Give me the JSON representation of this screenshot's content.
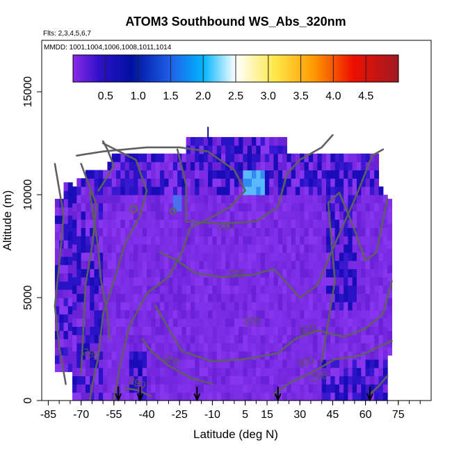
{
  "chart_data": {
    "type": "heatmap",
    "title": "ATOM3 Southbound WS_Abs_320nm",
    "flights_note": "Flts: 2,3,4,5,6,7",
    "dates_note": "MMDD: 1001,1004,1006,1008,1011,1014",
    "xlabel": "Latitude (deg N)",
    "ylabel": "Altitude (m)",
    "xlim": [
      -88,
      90
    ],
    "ylim": [
      0,
      17500
    ],
    "x_ticks": [
      -85,
      -70,
      -55,
      -40,
      -25,
      -10,
      5,
      15,
      30,
      45,
      60,
      75
    ],
    "y_ticks": [
      0,
      5000,
      10000,
      15000
    ],
    "colorbar": {
      "ticks": [
        0.5,
        1.0,
        1.5,
        2.0,
        2.5,
        3.0,
        3.5,
        4.0,
        4.5
      ],
      "tick_labels": [
        "0.5",
        "1.0",
        "1.5",
        "2.0",
        "2.5",
        "3.0",
        "3.5",
        "4.0",
        "4.5"
      ],
      "range": [
        0,
        5
      ],
      "colors": [
        "#7a2be0",
        "#2a10c8",
        "#0014a8",
        "#1e5ae6",
        "#00b4ff",
        "#ffffff",
        "#ffee60",
        "#ff9a00",
        "#ee1000",
        "#a01020"
      ]
    },
    "contour_labels": [
      {
        "label": "340",
        "lat": -4,
        "alt": 8300
      },
      {
        "label": "330",
        "lat": 1,
        "alt": 6000
      },
      {
        "label": "320",
        "lat": 8,
        "alt": 3700
      },
      {
        "label": "310",
        "lat": 34,
        "alt": 3300
      },
      {
        "label": "300",
        "lat": -29,
        "alt": 1800
      },
      {
        "label": "300",
        "lat": 33,
        "alt": 1700
      },
      {
        "label": "290",
        "lat": -45,
        "alt": 700
      },
      {
        "label": "290",
        "lat": 39,
        "alt": 1000
      },
      {
        "label": "280",
        "lat": -66,
        "alt": 2100
      }
    ],
    "profile_arrows_lat": [
      -53,
      -43,
      -17,
      20,
      62
    ],
    "grid": false,
    "legend_position": "top"
  }
}
